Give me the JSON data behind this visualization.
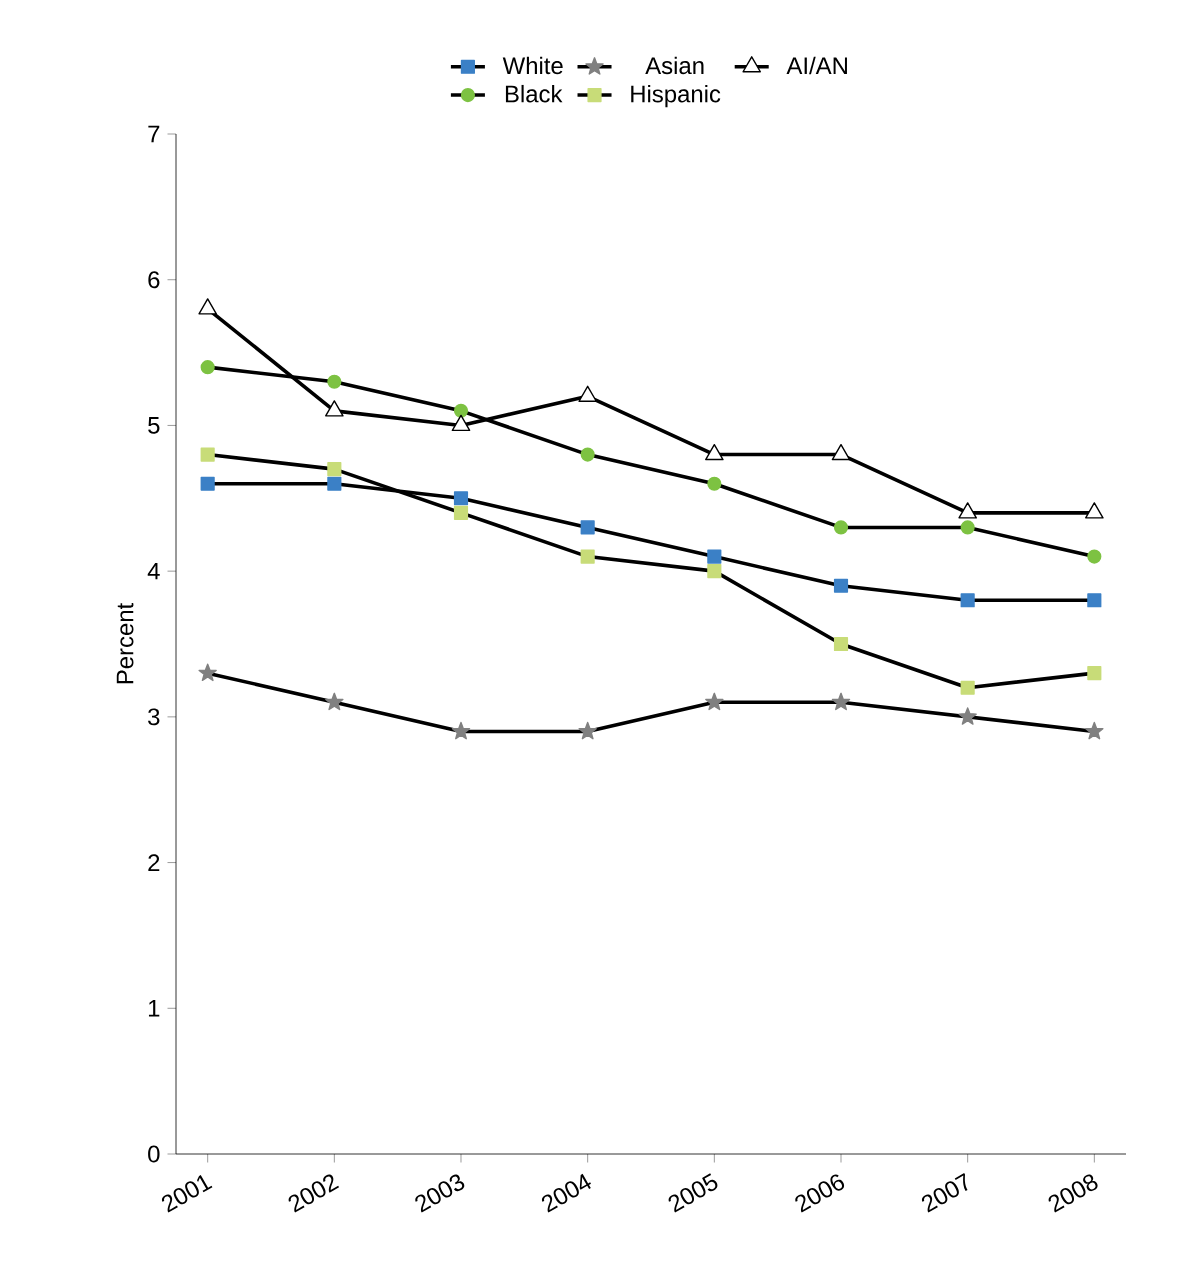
{
  "chart_data": {
    "type": "line",
    "ylabel": "Percent",
    "categories": [
      "2001",
      "2002",
      "2003",
      "2004",
      "2005",
      "2006",
      "2007",
      "2008"
    ],
    "ylim": [
      0,
      7
    ],
    "yticks": [
      0,
      1,
      2,
      3,
      4,
      5,
      6,
      7
    ],
    "grid": false,
    "legend": "top",
    "series": [
      {
        "name": "White",
        "color": "#3b80c6",
        "marker": "square",
        "values": [
          4.6,
          4.6,
          4.5,
          4.3,
          4.1,
          3.9,
          3.8,
          3.8
        ]
      },
      {
        "name": "Black",
        "color": "#7dc242",
        "marker": "circle",
        "values": [
          5.4,
          5.3,
          5.1,
          4.8,
          4.6,
          4.3,
          4.3,
          4.1
        ]
      },
      {
        "name": "Asian",
        "color": "#808080",
        "marker": "star",
        "values": [
          3.3,
          3.1,
          2.9,
          2.9,
          3.1,
          3.1,
          3.0,
          2.9
        ]
      },
      {
        "name": "Hispanic",
        "color": "#c8dc78",
        "marker": "square",
        "values": [
          4.8,
          4.7,
          4.4,
          4.1,
          4.0,
          3.5,
          3.2,
          3.3
        ]
      },
      {
        "name": "AI/AN",
        "color": "#ffffff",
        "marker": "triangle",
        "values": [
          5.8,
          5.1,
          5.0,
          5.2,
          4.8,
          4.8,
          4.4,
          4.4
        ]
      }
    ]
  }
}
